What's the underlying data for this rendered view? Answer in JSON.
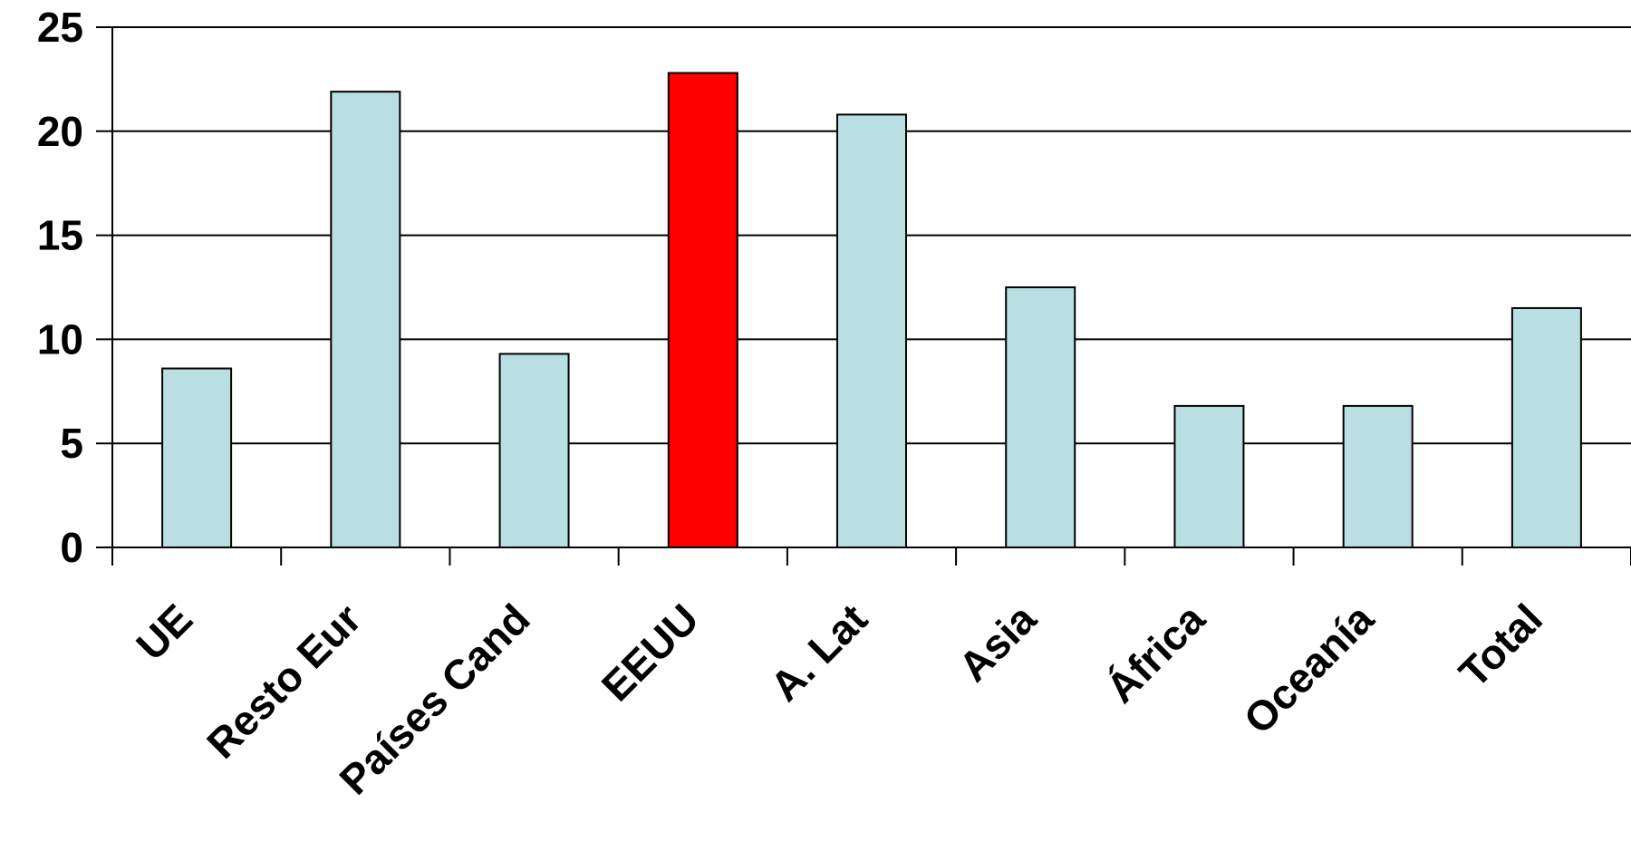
{
  "chart_data": {
    "type": "bar",
    "categories": [
      "UE",
      "Resto Eur",
      "Países Cand",
      "EEUU",
      "A. Lat",
      "Asia",
      "África",
      "Oceanía",
      "Total"
    ],
    "values": [
      8.6,
      21.9,
      9.3,
      22.8,
      20.8,
      12.5,
      6.8,
      6.8,
      11.5
    ],
    "ylim": [
      0,
      25
    ],
    "yticks": [
      "0",
      "5",
      "10",
      "15",
      "20",
      "25"
    ],
    "grid": true,
    "legend": false,
    "colors": {
      "default_bar": "#b9dfe3",
      "highlight_bar": "#ff0000",
      "highlight_category": "EEUU",
      "bar_edge": "#000000",
      "gridline": "#000000"
    }
  }
}
